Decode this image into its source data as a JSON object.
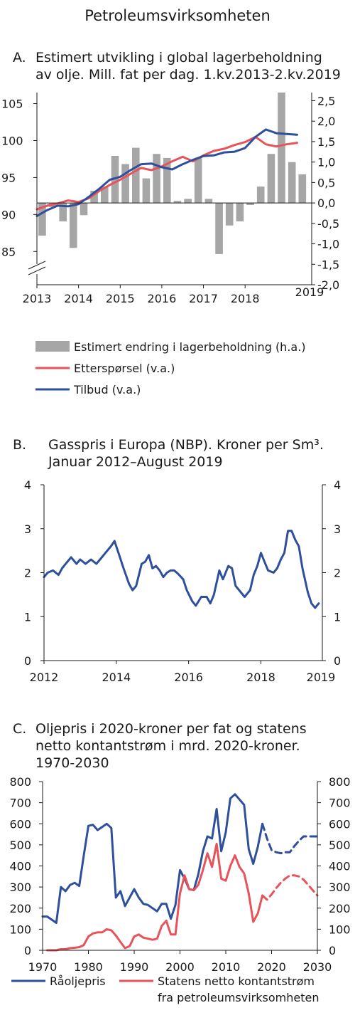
{
  "page_title": "Petroleumsvirksomheten",
  "colors": {
    "blue": "#2e4f9b",
    "red": "#e8525a",
    "gray": "#a6a6a6",
    "axis": "#1a1a1a"
  },
  "chart_data": [
    {
      "id": "A",
      "type": "bar+line",
      "letter": "A.",
      "title_lines": [
        "Estimert utvikling i global lagerbeholdning",
        "av olje. Mill. fat per dag. 1.kv.2013-2.kv.2019"
      ],
      "x_tick_labels": [
        "2013",
        "2014",
        "2015",
        "2016",
        "2017",
        "2018"
      ],
      "x_end_label": "2019",
      "x_ticks": [
        2013,
        2014,
        2015,
        2016,
        2017,
        2018
      ],
      "xlim": [
        2013,
        2019.6
      ],
      "y_left_ticks": [
        85,
        90,
        95,
        100,
        105
      ],
      "y_left_tick_labels": [
        "85",
        "90",
        "95",
        "100",
        "105"
      ],
      "ylim_left": [
        80.5,
        106.5
      ],
      "y_right_ticks": [
        -2.0,
        -1.5,
        -1.0,
        -0.5,
        0.0,
        0.5,
        1.0,
        1.5,
        2.0,
        2.5
      ],
      "y_right_tick_labels": [
        "-2,0",
        "-1,5",
        "-1,0",
        "-0,5",
        "0,0",
        "0,5",
        "1,0",
        "1,5",
        "2,0",
        "2,5"
      ],
      "ylim_right": [
        -2.0,
        2.7
      ],
      "bars": {
        "name": "Estimert endring i lagerbeholdning (h.a.)",
        "x": [
          2013.125,
          2013.375,
          2013.625,
          2013.875,
          2014.125,
          2014.375,
          2014.625,
          2014.875,
          2015.125,
          2015.375,
          2015.625,
          2015.875,
          2016.125,
          2016.375,
          2016.625,
          2016.875,
          2017.125,
          2017.375,
          2017.625,
          2017.875,
          2018.125,
          2018.375,
          2018.625,
          2018.875,
          2019.125,
          2019.375
        ],
        "values": [
          -0.8,
          -0.1,
          -0.45,
          -1.1,
          -0.3,
          0.3,
          0.4,
          1.15,
          0.95,
          1.35,
          0.6,
          1.2,
          1.1,
          0.05,
          0.1,
          1.1,
          0.1,
          -1.25,
          -0.55,
          -0.45,
          -0.05,
          0.4,
          1.2,
          2.7,
          1.0,
          0.7
        ]
      },
      "series": [
        {
          "name": "Etterspørsel (v.a.)",
          "color": "#e8525a",
          "x": [
            2013.0,
            2013.25,
            2013.5,
            2013.75,
            2014.0,
            2014.25,
            2014.5,
            2014.75,
            2015.0,
            2015.25,
            2015.5,
            2015.75,
            2016.0,
            2016.25,
            2016.5,
            2016.75,
            2017.0,
            2017.25,
            2017.5,
            2017.75,
            2018.0,
            2018.25,
            2018.5,
            2018.75,
            2019.0,
            2019.25
          ],
          "values": [
            90.7,
            91.2,
            91.5,
            91.9,
            91.7,
            92.2,
            93.2,
            94.0,
            94.7,
            95.5,
            96.3,
            96.0,
            96.5,
            97.2,
            97.8,
            97.2,
            98.0,
            98.6,
            98.9,
            99.4,
            99.8,
            100.5,
            99.5,
            99.2,
            99.5,
            99.7
          ]
        },
        {
          "name": "Tilbud (v.a.)",
          "color": "#2e4f9b",
          "x": [
            2013.0,
            2013.25,
            2013.5,
            2013.75,
            2014.0,
            2014.25,
            2014.5,
            2014.75,
            2015.0,
            2015.25,
            2015.5,
            2015.75,
            2016.0,
            2016.25,
            2016.5,
            2016.75,
            2017.0,
            2017.25,
            2017.5,
            2017.75,
            2018.0,
            2018.25,
            2018.5,
            2018.75,
            2019.0,
            2019.25
          ],
          "values": [
            89.8,
            90.6,
            91.2,
            91.1,
            91.4,
            92.4,
            93.5,
            94.7,
            95.1,
            96.0,
            96.8,
            96.9,
            96.4,
            96.1,
            96.8,
            97.4,
            97.9,
            98.0,
            98.4,
            98.5,
            99.0,
            100.5,
            101.5,
            101.0,
            100.9,
            100.8
          ]
        }
      ]
    },
    {
      "id": "B",
      "type": "line",
      "letter": "B.",
      "title_lines": [
        "Gasspris i Europa (NBP). Kroner per Sm³.",
        "Januar 2012–August 2019"
      ],
      "x_tick_labels": [
        "2012",
        "2014",
        "2016",
        "2018"
      ],
      "x_end_label": "2019",
      "x_ticks": [
        2012,
        2014,
        2016,
        2018
      ],
      "xlim": [
        2012,
        2019.7
      ],
      "y_ticks": [
        0,
        1,
        2,
        3,
        4
      ],
      "y_tick_labels": [
        "0",
        "1",
        "2",
        "3",
        "4"
      ],
      "ylim": [
        0,
        4
      ],
      "series": [
        {
          "name": "Gasspris",
          "color": "#2e4f9b",
          "x": [
            2012.0,
            2012.1,
            2012.25,
            2012.4,
            2012.5,
            2012.6,
            2012.75,
            2012.9,
            2013.0,
            2013.15,
            2013.3,
            2013.45,
            2013.55,
            2013.7,
            2013.85,
            2013.95,
            2014.1,
            2014.2,
            2014.35,
            2014.45,
            2014.55,
            2014.7,
            2014.8,
            2014.9,
            2015.0,
            2015.1,
            2015.2,
            2015.3,
            2015.4,
            2015.5,
            2015.6,
            2015.7,
            2015.85,
            2015.95,
            2016.1,
            2016.2,
            2016.35,
            2016.5,
            2016.6,
            2016.7,
            2016.85,
            2016.95,
            2017.1,
            2017.2,
            2017.3,
            2017.4,
            2017.55,
            2017.7,
            2017.8,
            2017.9,
            2018.0,
            2018.1,
            2018.2,
            2018.35,
            2018.45,
            2018.55,
            2018.65,
            2018.75,
            2018.85,
            2018.95,
            2019.05,
            2019.15,
            2019.3,
            2019.4,
            2019.5,
            2019.6
          ],
          "values": [
            1.9,
            2.0,
            2.05,
            1.95,
            2.1,
            2.2,
            2.35,
            2.2,
            2.3,
            2.2,
            2.3,
            2.2,
            2.3,
            2.45,
            2.6,
            2.72,
            2.35,
            2.1,
            1.75,
            1.6,
            1.7,
            2.2,
            2.25,
            2.4,
            2.1,
            2.15,
            2.05,
            1.9,
            2.0,
            2.05,
            2.05,
            1.98,
            1.85,
            1.6,
            1.35,
            1.25,
            1.45,
            1.45,
            1.3,
            1.5,
            2.05,
            1.85,
            2.15,
            2.1,
            1.7,
            1.6,
            1.45,
            1.6,
            1.95,
            2.15,
            2.45,
            2.25,
            2.05,
            2.0,
            2.1,
            2.3,
            2.45,
            2.95,
            2.95,
            2.75,
            2.6,
            2.1,
            1.55,
            1.3,
            1.2,
            1.3
          ]
        }
      ]
    },
    {
      "id": "C",
      "type": "line",
      "letter": "C.",
      "title_lines": [
        "Oljepris i 2020-kroner per fat og statens",
        "netto kontantstrøm i mrd. 2020-kroner.",
        "1970-2030"
      ],
      "x_tick_labels": [
        "1970",
        "1980",
        "1990",
        "2000",
        "2010",
        "2020",
        "2030"
      ],
      "x_ticks": [
        1970,
        1980,
        1990,
        2000,
        2010,
        2020,
        2030
      ],
      "xlim": [
        1970,
        2030
      ],
      "y_ticks": [
        0,
        100,
        200,
        300,
        400,
        500,
        600,
        700,
        800
      ],
      "y_tick_labels": [
        "0",
        "100",
        "200",
        "300",
        "400",
        "500",
        "600",
        "700",
        "800"
      ],
      "ylim": [
        0,
        800
      ],
      "series": [
        {
          "name": "Råoljepris",
          "color": "#2e4f9b",
          "x": [
            1970,
            1971,
            1972,
            1973,
            1974,
            1975,
            1976,
            1977,
            1978,
            1979,
            1980,
            1981,
            1982,
            1983,
            1984,
            1985,
            1986,
            1987,
            1988,
            1989,
            1990,
            1991,
            1992,
            1993,
            1994,
            1995,
            1996,
            1997,
            1998,
            1999,
            2000,
            2001,
            2002,
            2003,
            2004,
            2005,
            2006,
            2007,
            2008,
            2009,
            2010,
            2011,
            2012,
            2013,
            2014,
            2015,
            2016,
            2017,
            2018
          ],
          "values": [
            160,
            160,
            145,
            130,
            300,
            280,
            310,
            320,
            305,
            450,
            590,
            595,
            570,
            585,
            600,
            580,
            250,
            280,
            210,
            250,
            290,
            250,
            220,
            215,
            200,
            185,
            220,
            220,
            150,
            215,
            380,
            340,
            290,
            285,
            360,
            470,
            540,
            530,
            670,
            470,
            560,
            720,
            740,
            715,
            690,
            480,
            410,
            490,
            600
          ],
          "projection": {
            "x": [
              2018,
              2019,
              2020,
              2021,
              2022,
              2023,
              2024,
              2025,
              2026,
              2027,
              2028,
              2029,
              2030
            ],
            "values": [
              600,
              530,
              475,
              465,
              460,
              465,
              465,
              495,
              520,
              540,
              540,
              540,
              540
            ]
          }
        },
        {
          "name": "Statens netto kontantstrøm fra petroleumsvirksomheten",
          "color": "#e8525a",
          "x": [
            1971,
            1972,
            1973,
            1974,
            1975,
            1976,
            1977,
            1978,
            1979,
            1980,
            1981,
            1982,
            1983,
            1984,
            1985,
            1986,
            1987,
            1988,
            1989,
            1990,
            1991,
            1992,
            1993,
            1994,
            1995,
            1996,
            1997,
            1998,
            1999,
            2000,
            2001,
            2002,
            2003,
            2004,
            2005,
            2006,
            2007,
            2008,
            2009,
            2010,
            2011,
            2012,
            2013,
            2014,
            2015,
            2016,
            2017,
            2018
          ],
          "values": [
            0,
            0,
            0,
            5,
            5,
            10,
            12,
            15,
            25,
            65,
            80,
            85,
            85,
            100,
            95,
            70,
            40,
            10,
            20,
            65,
            75,
            60,
            55,
            50,
            55,
            115,
            140,
            75,
            75,
            270,
            355,
            290,
            285,
            310,
            380,
            460,
            395,
            505,
            340,
            330,
            400,
            450,
            395,
            365,
            270,
            135,
            175,
            260
          ],
          "projection": {
            "x": [
              2018,
              2019,
              2020,
              2021,
              2022,
              2023,
              2024,
              2025,
              2026,
              2027,
              2028,
              2029,
              2030
            ],
            "values": [
              260,
              240,
              265,
              295,
              320,
              340,
              355,
              355,
              350,
              335,
              310,
              285,
              260
            ]
          }
        }
      ],
      "legend": [
        "Råoljepris",
        "Statens netto kontantstrøm",
        "fra petroleumsvirksomheten"
      ]
    }
  ]
}
